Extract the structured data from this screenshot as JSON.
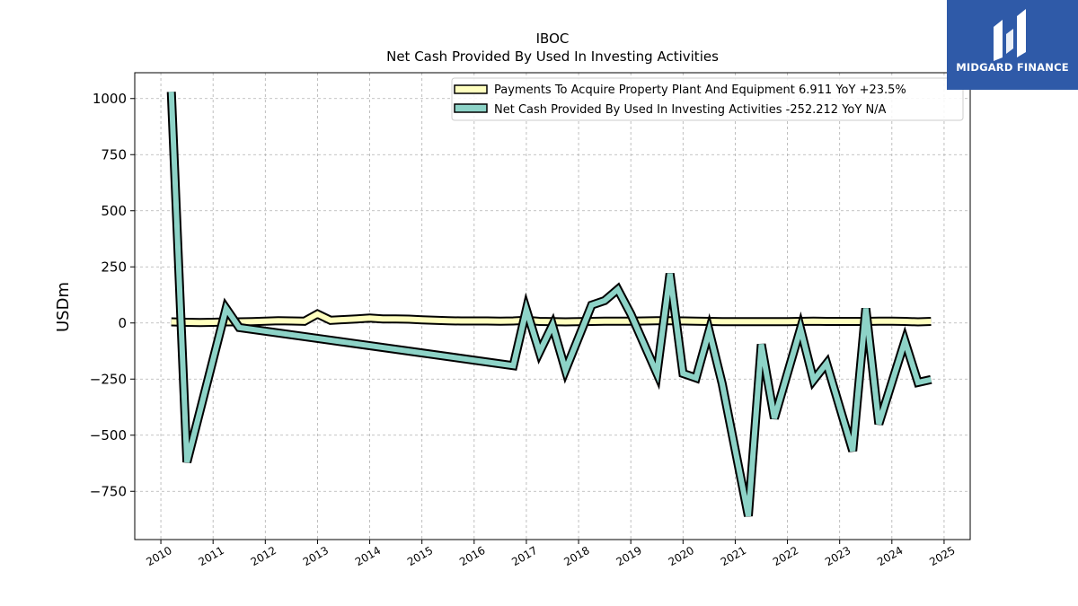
{
  "chart_data": {
    "type": "line",
    "title": "IBOC",
    "subtitle": "Net Cash Provided By Used In Investing Activities",
    "ylabel": "USDm",
    "xlabel": "",
    "x_ticks": [
      "2010",
      "2011",
      "2012",
      "2013",
      "2014",
      "2015",
      "2016",
      "2017",
      "2018",
      "2019",
      "2020",
      "2021",
      "2022",
      "2023",
      "2024",
      "2025"
    ],
    "y_ticks": [
      -750,
      -500,
      -250,
      0,
      250,
      500,
      750,
      1000
    ],
    "y_tick_labels": [
      "−750",
      "−500",
      "−250",
      "0",
      "250",
      "500",
      "750",
      "1000"
    ],
    "xlim": [
      2009.5,
      2025.5
    ],
    "ylim": [
      -965,
      1115
    ],
    "grid": true,
    "legend_position": "top-right",
    "series": [
      {
        "name": "Payments To Acquire Property Plant And Equipment  6.911 YoY +23.5%",
        "color": "#ffffbf",
        "x": [
          2010.2,
          2010.5,
          2010.75,
          2011.0,
          2011.25,
          2011.5,
          2011.75,
          2012.0,
          2012.25,
          2012.5,
          2012.75,
          2013.0,
          2013.25,
          2013.5,
          2013.75,
          2014.0,
          2014.25,
          2014.5,
          2014.75,
          2015.0,
          2015.25,
          2015.5,
          2015.75,
          2016.0,
          2016.25,
          2016.5,
          2016.75,
          2017.0,
          2017.25,
          2017.5,
          2017.75,
          2018.0,
          2018.25,
          2018.5,
          2018.75,
          2019.0,
          2019.25,
          2019.5,
          2019.75,
          2020.0,
          2020.25,
          2020.5,
          2020.75,
          2021.0,
          2021.25,
          2021.5,
          2021.75,
          2022.0,
          2022.25,
          2022.5,
          2022.75,
          2023.0,
          2023.25,
          2023.5,
          2023.75,
          2024.0,
          2024.25,
          2024.5,
          2024.75
        ],
        "values": [
          5,
          3,
          2,
          3,
          5,
          5,
          6,
          8,
          10,
          9,
          8,
          40,
          12,
          15,
          18,
          22,
          18,
          18,
          17,
          14,
          12,
          10,
          9,
          9,
          9,
          8,
          9,
          12,
          7,
          6,
          5,
          6,
          7,
          8,
          8,
          8,
          9,
          10,
          10,
          9,
          8,
          7,
          6,
          6,
          6,
          6,
          6,
          6,
          7,
          8,
          7,
          7,
          7,
          7,
          8,
          8,
          7,
          5,
          6.911
        ]
      },
      {
        "name": "Net Cash Provided By Used In Investing Activities  -252.212 YoY N/A",
        "color": "#8dd3c7",
        "x": [
          2010.2,
          2010.5,
          2011.25,
          2011.5,
          2016.75,
          2017.0,
          2017.25,
          2017.5,
          2017.75,
          2018.25,
          2018.5,
          2018.75,
          2019.0,
          2019.5,
          2019.75,
          2020.0,
          2020.25,
          2020.5,
          2020.75,
          2021.25,
          2021.5,
          2021.75,
          2022.25,
          2022.5,
          2022.75,
          2023.25,
          2023.5,
          2023.75,
          2024.25,
          2024.5,
          2024.75
        ],
        "values": [
          1030,
          -620,
          65,
          -20,
          -190,
          60,
          -130,
          -10,
          -210,
          80,
          100,
          150,
          40,
          -225,
          220,
          -225,
          -245,
          -35,
          -270,
          -860,
          -95,
          -425,
          -25,
          -255,
          -180,
          -570,
          65,
          -450,
          -80,
          -265,
          -252.212
        ]
      }
    ]
  },
  "logo": {
    "text": "MIDGARD FINANCE"
  }
}
